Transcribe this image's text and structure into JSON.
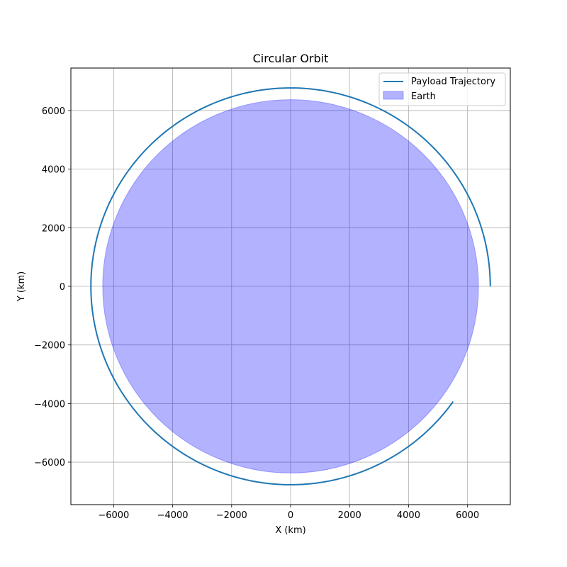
{
  "chart_data": {
    "type": "line",
    "title": "Circular Orbit",
    "xlabel": "X (km)",
    "ylabel": "Y (km)",
    "xlim": [
      -7450,
      7450
    ],
    "ylim": [
      -7450,
      7450
    ],
    "xticks": [
      -6000,
      -4000,
      -2000,
      0,
      2000,
      4000,
      6000
    ],
    "yticks": [
      -6000,
      -4000,
      -2000,
      0,
      2000,
      4000,
      6000
    ],
    "xtick_labels": [
      "−6000",
      "−4000",
      "−2000",
      "0",
      "2000",
      "4000",
      "6000"
    ],
    "ytick_labels": [
      "−6000",
      "−4000",
      "−2000",
      "0",
      "2000",
      "4000",
      "6000"
    ],
    "grid": true,
    "legend_position": "top-right",
    "series": [
      {
        "name": "Payload Trajectory",
        "kind": "line",
        "color": "#1f77b4",
        "shape": "arc",
        "center": [
          0,
          0
        ],
        "radius": 6771,
        "start_angle_deg": 0,
        "end_angle_deg": 324.5
      },
      {
        "name": "Earth",
        "kind": "filled-circle",
        "color": "#0000ff",
        "fill_opacity": 0.3,
        "center": [
          0,
          0
        ],
        "radius": 6371
      }
    ]
  }
}
